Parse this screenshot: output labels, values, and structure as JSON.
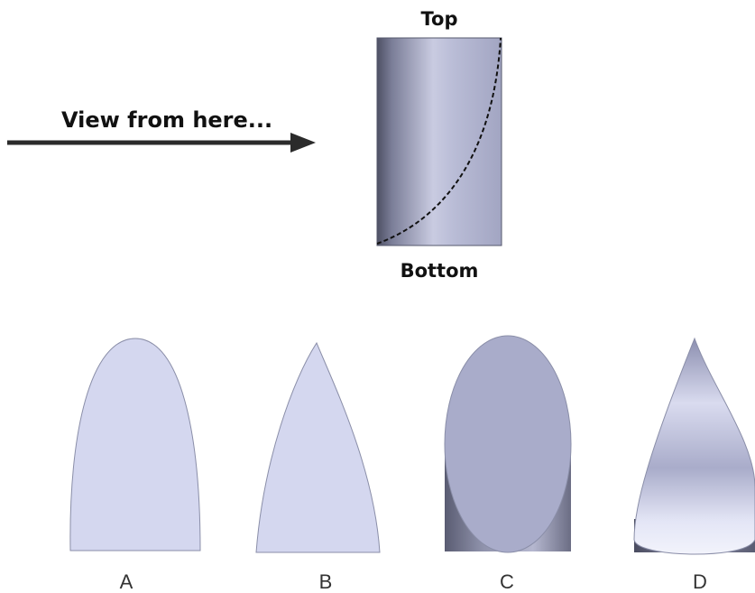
{
  "labels": {
    "view": "View from here...",
    "top": "Top",
    "bottom": "Bottom"
  },
  "options": [
    "A",
    "B",
    "C",
    "D"
  ],
  "colors": {
    "shape_fill": "#d4d7ef",
    "shape_stroke": "#8a8ea8",
    "arrow": "#2b2b2b"
  }
}
